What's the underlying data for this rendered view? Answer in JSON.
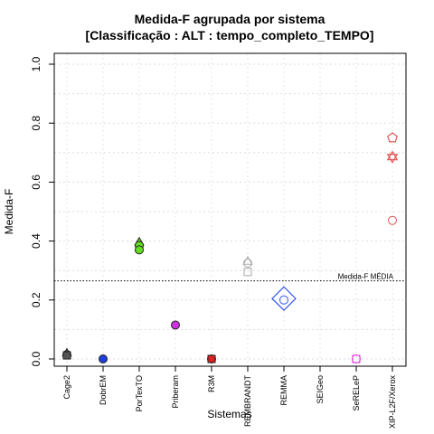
{
  "chart_data": {
    "type": "scatter",
    "title": "Medida-F agrupada por sistema",
    "subtitle": "[Classificação : ALT : tempo_completo_TEMPO]",
    "xlabel": "Sistemas",
    "ylabel": "Medida-F",
    "ylim": [
      0,
      1
    ],
    "yticks": [
      "0.0",
      "0.2",
      "0.4",
      "0.6",
      "0.8",
      "1.0"
    ],
    "grid": true,
    "categories": [
      "Cage2",
      "DobrEM",
      "PorTexTO",
      "Priberam",
      "R3M",
      "REMBRANDT",
      "REMMA",
      "SEIGeo",
      "SeRELeP",
      "XIP-L2F/Xerox"
    ],
    "reference_line": {
      "value": 0.265,
      "label": "Medida-F MÉDIA"
    },
    "points": [
      {
        "category": "Cage2",
        "y": 0.015,
        "shape": "circle",
        "color": "#555555"
      },
      {
        "category": "Cage2",
        "y": 0.018,
        "shape": "triangle",
        "color": "#555555"
      },
      {
        "category": "Cage2",
        "y": 0.012,
        "shape": "square",
        "color": "#555555"
      },
      {
        "category": "DobrEM",
        "y": 0.0,
        "shape": "circle",
        "color": "#1f3fd8"
      },
      {
        "category": "PorTexTO",
        "y": 0.395,
        "shape": "triangle",
        "color": "#66dd22"
      },
      {
        "category": "PorTexTO",
        "y": 0.385,
        "shape": "circle",
        "color": "#66dd22"
      },
      {
        "category": "PorTexTO",
        "y": 0.37,
        "shape": "circle",
        "color": "#66dd22"
      },
      {
        "category": "Priberam",
        "y": 0.115,
        "shape": "circle",
        "color": "#cc33dd"
      },
      {
        "category": "R3M",
        "y": 0.0,
        "shape": "circle",
        "color": "#dd2222"
      },
      {
        "category": "R3M",
        "y": 0.0,
        "shape": "square",
        "color": "#dd2222"
      },
      {
        "category": "REMBRANDT",
        "y": 0.33,
        "shape": "triangle-open",
        "color": "#aaaaaa"
      },
      {
        "category": "REMBRANDT",
        "y": 0.325,
        "shape": "circle-open",
        "color": "#aaaaaa"
      },
      {
        "category": "REMBRANDT",
        "y": 0.295,
        "shape": "square-open",
        "color": "#aaaaaa"
      },
      {
        "category": "REMMA",
        "y": 0.205,
        "shape": "diamond-open",
        "color": "#3355ee"
      },
      {
        "category": "REMMA",
        "y": 0.2,
        "shape": "circle-open",
        "color": "#3355ee"
      },
      {
        "category": "SeRELeP",
        "y": 0.0,
        "shape": "square-open",
        "color": "#dd44dd"
      },
      {
        "category": "SeRELeP",
        "y": 0.0,
        "shape": "circle-open",
        "color": "#dd44dd"
      },
      {
        "category": "XIP-L2F/Xerox",
        "y": 0.75,
        "shape": "pentagon-open",
        "color": "#e05555"
      },
      {
        "category": "XIP-L2F/Xerox",
        "y": 0.685,
        "shape": "star-open",
        "color": "#e05555"
      },
      {
        "category": "XIP-L2F/Xerox",
        "y": 0.47,
        "shape": "circle-open",
        "color": "#e05555"
      }
    ]
  }
}
